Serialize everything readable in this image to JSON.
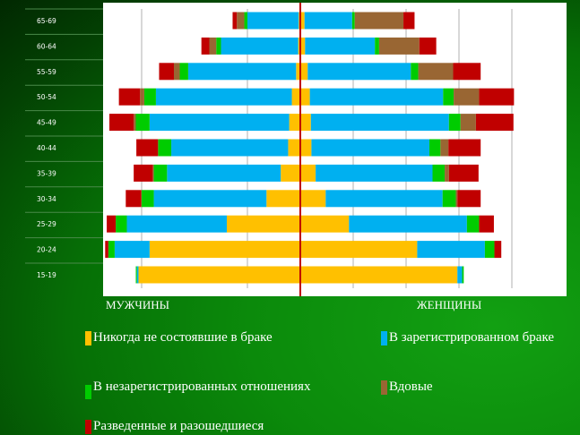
{
  "chart_data": {
    "type": "bar",
    "subtype": "population-pyramid-stacked",
    "categories": [
      "65-69",
      "60-64",
      "55-59",
      "50-54",
      "45-49",
      "40-44",
      "35-39",
      "30-34",
      "25-29",
      "20-24",
      "15-19"
    ],
    "left_label": "МУЖЧИНЫ",
    "right_label": "ЖЕНЩИНЫ",
    "xlim": [
      -40,
      40
    ],
    "grid": true,
    "series": [
      {
        "name": "Никогда не состоявшие в браке",
        "color": "#ffc000",
        "men": [
          0.3,
          0.4,
          0.8,
          1.6,
          2.1,
          2.3,
          3.7,
          6.4,
          13.9,
          28.5,
          30.6
        ],
        "women": [
          0.8,
          0.9,
          1.4,
          1.8,
          2.0,
          2.1,
          2.9,
          4.8,
          9.2,
          22.1,
          29.7
        ]
      },
      {
        "name": "В зарегистрированном браке",
        "color": "#00b0f0",
        "men": [
          9.7,
          14.6,
          20.4,
          25.7,
          26.4,
          22.1,
          21.5,
          21.3,
          18.9,
          6.6,
          0.3
        ],
        "women": [
          9.0,
          13.2,
          19.5,
          25.2,
          26.1,
          22.3,
          22.1,
          22.1,
          22.3,
          12.8,
          0.9
        ]
      },
      {
        "name": "В незарегистрированных отношениях",
        "color": "#00cc00",
        "men": [
          0.6,
          0.9,
          1.6,
          2.2,
          2.6,
          2.5,
          2.5,
          2.3,
          2.1,
          1.2,
          0.2
        ],
        "women": [
          0.5,
          0.8,
          1.4,
          2.0,
          2.2,
          2.1,
          2.3,
          2.5,
          2.3,
          1.8,
          0.3
        ]
      },
      {
        "name": "Вдовые",
        "color": "#996633",
        "men": [
          1.4,
          1.3,
          1.1,
          0.8,
          0.4,
          0,
          0.2,
          0.1,
          0,
          0,
          0
        ],
        "women": [
          9.2,
          7.6,
          6.6,
          4.8,
          2.9,
          1.5,
          0.8,
          0.3,
          0,
          0,
          0
        ]
      },
      {
        "name": "Разведенные и разошедшиеся",
        "color": "#c00000",
        "men": [
          0.8,
          1.5,
          2.8,
          4.0,
          4.6,
          4.1,
          3.6,
          2.9,
          1.7,
          0.6,
          0
        ],
        "women": [
          2.1,
          3.2,
          5.2,
          6.6,
          7.1,
          6.1,
          5.6,
          4.4,
          2.8,
          1.3,
          0
        ]
      }
    ]
  }
}
